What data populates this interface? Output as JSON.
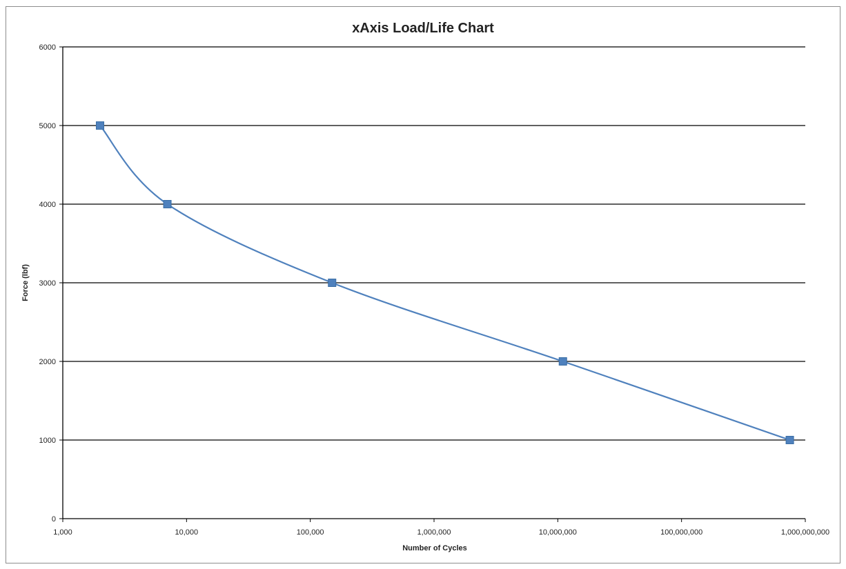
{
  "chart_data": {
    "type": "line",
    "title": "xAxis Load/Life Chart",
    "xlabel": "Number of Cycles",
    "ylabel": "Force (lbf)",
    "x_scale": "log",
    "xlim": [
      1000,
      1000000000
    ],
    "ylim": [
      0,
      6000
    ],
    "x_ticks": [
      1000,
      10000,
      100000,
      1000000,
      10000000,
      100000000,
      1000000000
    ],
    "x_tick_labels": [
      "1,000",
      "10,000",
      "100,000",
      "1,000,000",
      "10,000,000",
      "100,000,000",
      "1,000,000,000"
    ],
    "y_ticks": [
      0,
      1000,
      2000,
      3000,
      4000,
      5000,
      6000
    ],
    "y_tick_labels": [
      "0",
      "1000",
      "2000",
      "3000",
      "4000",
      "5000",
      "6000"
    ],
    "grid": "horizontal major",
    "legend": "none",
    "series": [
      {
        "color": "#4f81bd",
        "marker": "square",
        "smooth": true,
        "x": [
          2000,
          7000,
          150000,
          11000000,
          750000000
        ],
        "y": [
          5000,
          4000,
          3000,
          2000,
          1000
        ]
      }
    ]
  }
}
